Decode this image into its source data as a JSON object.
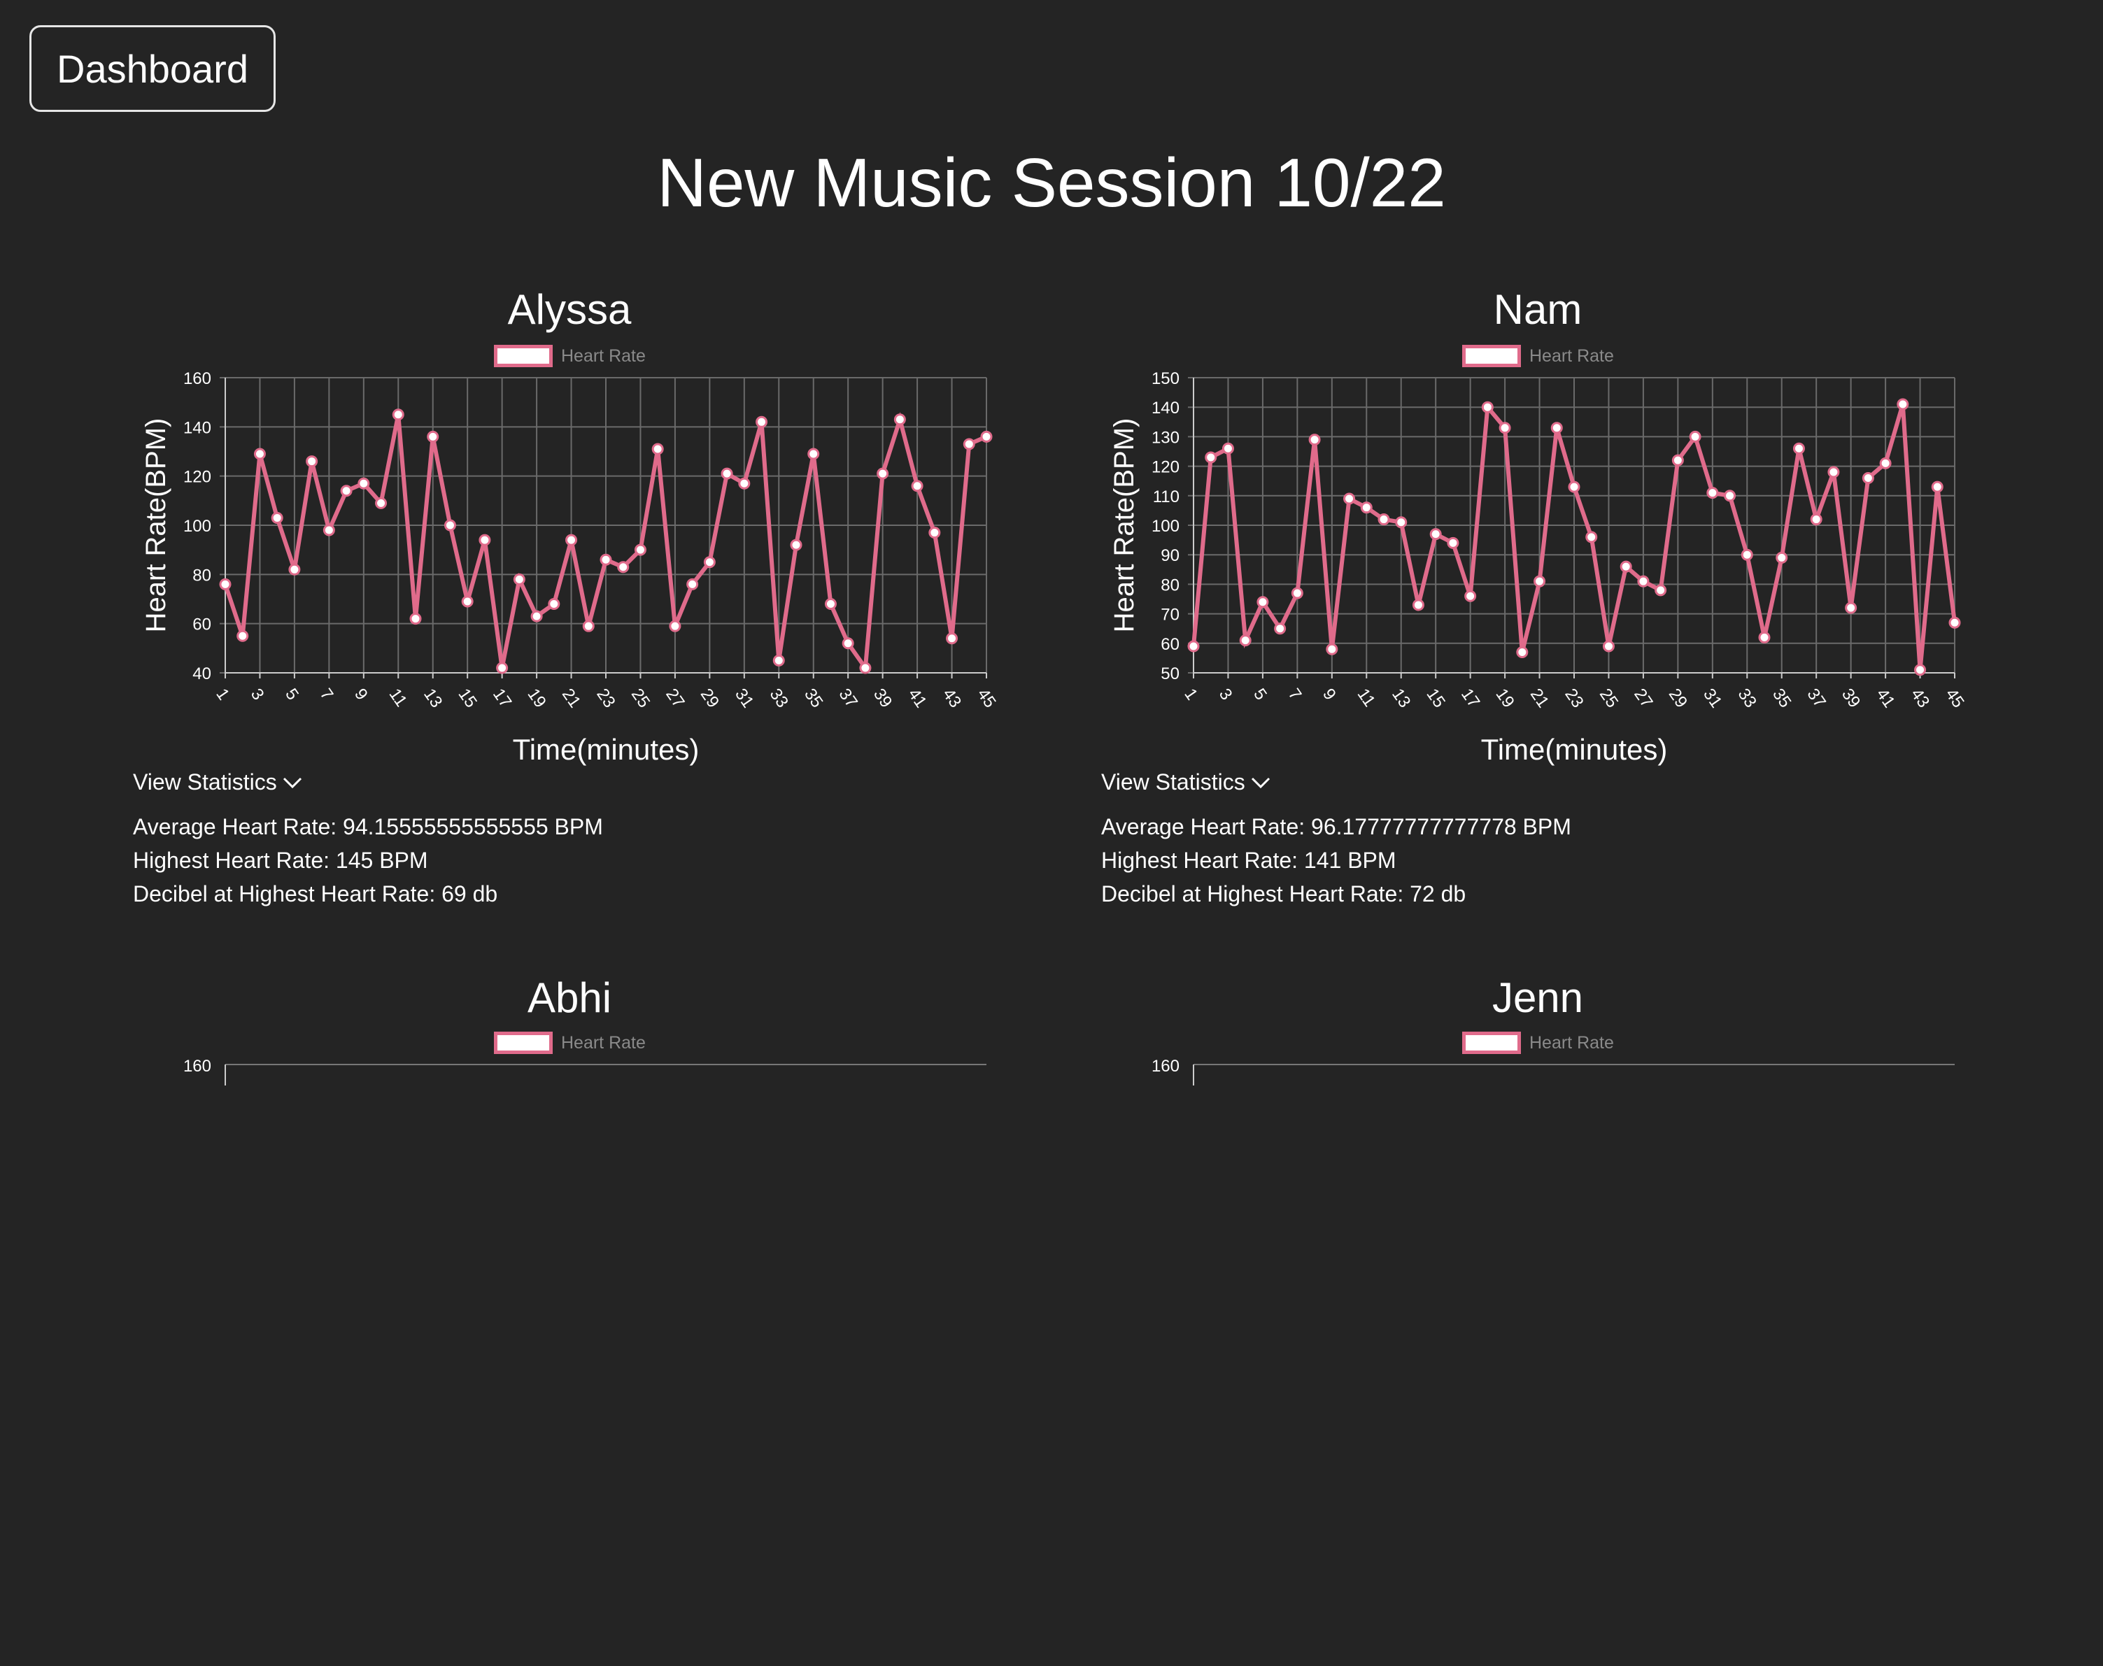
{
  "nav": {
    "dashboard_label": "Dashboard"
  },
  "page": {
    "title": "New Music Session 10/22"
  },
  "panels": [
    {
      "name": "Alyssa",
      "legend_label": "Heart Rate",
      "stats_toggle_label": "View Statistics",
      "stats": [
        "Average Heart Rate: 94.15555555555555 BPM",
        "Highest Heart Rate: 145 BPM",
        "Decibel at Highest Heart Rate: 69 db"
      ]
    },
    {
      "name": "Nam",
      "legend_label": "Heart Rate",
      "stats_toggle_label": "View Statistics",
      "stats": [
        "Average Heart Rate: 96.17777777777778 BPM",
        "Highest Heart Rate: 141 BPM",
        "Decibel at Highest Heart Rate: 72 db"
      ]
    },
    {
      "name": "Abhi",
      "legend_label": "Heart Rate"
    },
    {
      "name": "Jenn",
      "legend_label": "Heart Rate"
    }
  ],
  "chart_data": [
    {
      "type": "line",
      "person": "Alyssa",
      "x": [
        1,
        2,
        3,
        4,
        5,
        6,
        7,
        8,
        9,
        10,
        11,
        12,
        13,
        14,
        15,
        16,
        17,
        18,
        19,
        20,
        21,
        22,
        23,
        24,
        25,
        26,
        27,
        28,
        29,
        30,
        31,
        32,
        33,
        34,
        35,
        36,
        37,
        38,
        39,
        40,
        41,
        42,
        43,
        44,
        45
      ],
      "x_tick_labels": [
        "1",
        "3",
        "5",
        "7",
        "9",
        "11",
        "13",
        "15",
        "17",
        "19",
        "21",
        "23",
        "25",
        "27",
        "29",
        "31",
        "33",
        "35",
        "37",
        "39",
        "41",
        "43",
        "45"
      ],
      "series": [
        {
          "name": "Heart Rate",
          "values": [
            76,
            55,
            129,
            103,
            82,
            126,
            98,
            114,
            117,
            109,
            145,
            62,
            136,
            100,
            69,
            94,
            42,
            78,
            63,
            68,
            94,
            59,
            86,
            83,
            90,
            131,
            59,
            76,
            85,
            121,
            117,
            142,
            45,
            92,
            129,
            68,
            52,
            42,
            121,
            143,
            116,
            97,
            54,
            133,
            136
          ]
        }
      ],
      "xlabel": "Time(minutes)",
      "ylabel": "Heart Rate(BPM)",
      "ylim": [
        40,
        160
      ],
      "y_ticks": [
        40,
        60,
        80,
        100,
        120,
        140,
        160
      ],
      "grid": true,
      "legend": "top-center",
      "color": "#e06b8b"
    },
    {
      "type": "line",
      "person": "Nam",
      "x": [
        1,
        2,
        3,
        4,
        5,
        6,
        7,
        8,
        9,
        10,
        11,
        12,
        13,
        14,
        15,
        16,
        17,
        18,
        19,
        20,
        21,
        22,
        23,
        24,
        25,
        26,
        27,
        28,
        29,
        30,
        31,
        32,
        33,
        34,
        35,
        36,
        37,
        38,
        39,
        40,
        41,
        42,
        43,
        44,
        45
      ],
      "x_tick_labels": [
        "1",
        "3",
        "5",
        "7",
        "9",
        "11",
        "13",
        "15",
        "17",
        "19",
        "21",
        "23",
        "25",
        "27",
        "29",
        "31",
        "33",
        "35",
        "37",
        "39",
        "41",
        "43",
        "45"
      ],
      "series": [
        {
          "name": "Heart Rate",
          "values": [
            59,
            123,
            126,
            61,
            74,
            65,
            77,
            129,
            58,
            109,
            106,
            102,
            101,
            73,
            97,
            94,
            76,
            140,
            133,
            57,
            81,
            133,
            113,
            96,
            59,
            86,
            81,
            78,
            122,
            130,
            111,
            110,
            90,
            62,
            89,
            126,
            102,
            118,
            72,
            116,
            121,
            141,
            51,
            113,
            67
          ]
        }
      ],
      "xlabel": "Time(minutes)",
      "ylabel": "Heart Rate(BPM)",
      "ylim": [
        50,
        150
      ],
      "y_ticks": [
        50,
        60,
        70,
        80,
        90,
        100,
        110,
        120,
        130,
        140,
        150
      ],
      "grid": true,
      "legend": "top-center",
      "color": "#e06b8b"
    },
    {
      "type": "line",
      "person": "Abhi",
      "series": [
        {
          "name": "Heart Rate",
          "values": []
        }
      ],
      "y_ticks": [
        160
      ],
      "legend": "top-center",
      "color": "#e06b8b"
    },
    {
      "type": "line",
      "person": "Jenn",
      "series": [
        {
          "name": "Heart Rate",
          "values": []
        }
      ],
      "y_ticks": [
        160
      ],
      "legend": "top-center",
      "color": "#e06b8b"
    }
  ]
}
